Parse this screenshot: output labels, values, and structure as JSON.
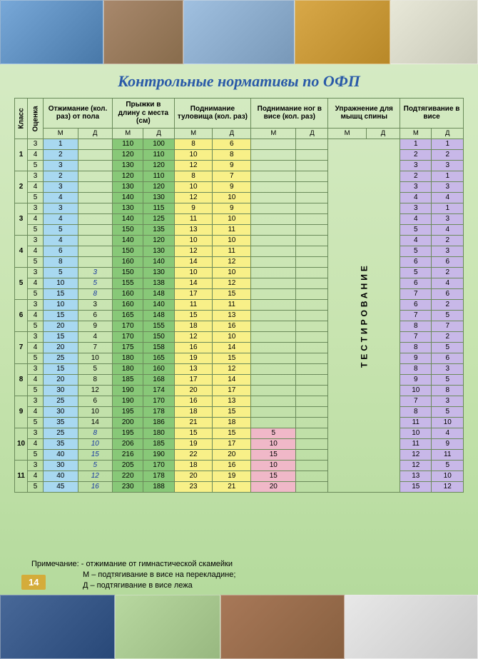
{
  "title": "Контрольные нормативы по ОФП",
  "page_number": "14",
  "headers": {
    "klass": "Класс",
    "grade": "Оценка",
    "ex1": "Отжимание (кол. раз) от пола",
    "ex2": "Прыжки в длину с места (см)",
    "ex3": "Поднимание туловища (кол. раз)",
    "ex4": "Поднимание ног в висе (кол. раз)",
    "ex5": "Упражнение для мышц спины",
    "ex6": "Подтягивание в висе",
    "m": "М",
    "d": "Д"
  },
  "test_label": "ТЕСТИРОВАНИЕ",
  "colors": {
    "blue": "#a8d8f0",
    "green": "#88c878",
    "yellow": "#f8f088",
    "purple": "#c8b8e8",
    "pink": "#f0b8c8",
    "border": "#6a8a5a",
    "title": "#2a5aa8"
  },
  "note_lines": [
    "Примечание: - отжимание от гимнастической скамейки",
    "М – подтягивание в висе на перекладине;",
    "Д – подтягивание в висе лежа"
  ],
  "rows": [
    {
      "k": "1",
      "g": "3",
      "e1m": "1",
      "e1d": "",
      "e2m": "110",
      "e2d": "100",
      "e3m": "8",
      "e3d": "6",
      "e4m": "",
      "e4d": "",
      "e6m": "1",
      "e6d": "1"
    },
    {
      "k": "",
      "g": "4",
      "e1m": "2",
      "e1d": "",
      "e2m": "120",
      "e2d": "110",
      "e3m": "10",
      "e3d": "8",
      "e4m": "",
      "e4d": "",
      "e6m": "2",
      "e6d": "2"
    },
    {
      "k": "",
      "g": "5",
      "e1m": "3",
      "e1d": "",
      "e2m": "130",
      "e2d": "120",
      "e3m": "12",
      "e3d": "9",
      "e4m": "",
      "e4d": "",
      "e6m": "3",
      "e6d": "3"
    },
    {
      "k": "2",
      "g": "3",
      "e1m": "2",
      "e1d": "",
      "e2m": "120",
      "e2d": "110",
      "e3m": "8",
      "e3d": "7",
      "e4m": "",
      "e4d": "",
      "e6m": "2",
      "e6d": "1"
    },
    {
      "k": "",
      "g": "4",
      "e1m": "3",
      "e1d": "",
      "e2m": "130",
      "e2d": "120",
      "e3m": "10",
      "e3d": "9",
      "e4m": "",
      "e4d": "",
      "e6m": "3",
      "e6d": "3"
    },
    {
      "k": "",
      "g": "5",
      "e1m": "4",
      "e1d": "",
      "e2m": "140",
      "e2d": "130",
      "e3m": "12",
      "e3d": "10",
      "e4m": "",
      "e4d": "",
      "e6m": "4",
      "e6d": "4"
    },
    {
      "k": "3",
      "g": "3",
      "e1m": "3",
      "e1d": "",
      "e2m": "130",
      "e2d": "115",
      "e3m": "9",
      "e3d": "9",
      "e4m": "",
      "e4d": "",
      "e6m": "3",
      "e6d": "1"
    },
    {
      "k": "",
      "g": "4",
      "e1m": "4",
      "e1d": "",
      "e2m": "140",
      "e2d": "125",
      "e3m": "11",
      "e3d": "10",
      "e4m": "",
      "e4d": "",
      "e6m": "4",
      "e6d": "3"
    },
    {
      "k": "",
      "g": "5",
      "e1m": "5",
      "e1d": "",
      "e2m": "150",
      "e2d": "135",
      "e3m": "13",
      "e3d": "11",
      "e4m": "",
      "e4d": "",
      "e6m": "5",
      "e6d": "4"
    },
    {
      "k": "4",
      "g": "3",
      "e1m": "4",
      "e1d": "",
      "e2m": "140",
      "e2d": "120",
      "e3m": "10",
      "e3d": "10",
      "e4m": "",
      "e4d": "",
      "e6m": "4",
      "e6d": "2"
    },
    {
      "k": "",
      "g": "4",
      "e1m": "6",
      "e1d": "",
      "e2m": "150",
      "e2d": "130",
      "e3m": "12",
      "e3d": "11",
      "e4m": "",
      "e4d": "",
      "e6m": "5",
      "e6d": "3"
    },
    {
      "k": "",
      "g": "5",
      "e1m": "8",
      "e1d": "",
      "e2m": "160",
      "e2d": "140",
      "e3m": "14",
      "e3d": "12",
      "e4m": "",
      "e4d": "",
      "e6m": "6",
      "e6d": "6"
    },
    {
      "k": "5",
      "g": "3",
      "e1m": "5",
      "e1d": "",
      "i": "3",
      "e2m": "150",
      "e2d": "130",
      "e3m": "10",
      "e3d": "10",
      "e4m": "",
      "e4d": "",
      "e6m": "5",
      "e6d": "2"
    },
    {
      "k": "",
      "g": "4",
      "e1m": "10",
      "e1d": "",
      "i": "5",
      "e2m": "155",
      "e2d": "138",
      "e3m": "14",
      "e3d": "12",
      "e4m": "",
      "e4d": "",
      "e6m": "6",
      "e6d": "4"
    },
    {
      "k": "",
      "g": "5",
      "e1m": "15",
      "e1d": "",
      "i": "8",
      "e2m": "160",
      "e2d": "148",
      "e3m": "17",
      "e3d": "15",
      "e4m": "",
      "e4d": "",
      "e6m": "7",
      "e6d": "6"
    },
    {
      "k": "6",
      "g": "3",
      "e1m": "10",
      "e1d": "3",
      "e2m": "160",
      "e2d": "140",
      "e3m": "11",
      "e3d": "11",
      "e4m": "",
      "e4d": "",
      "e6m": "6",
      "e6d": "2"
    },
    {
      "k": "",
      "g": "4",
      "e1m": "15",
      "e1d": "6",
      "e2m": "165",
      "e2d": "148",
      "e3m": "15",
      "e3d": "13",
      "e4m": "",
      "e4d": "",
      "e6m": "7",
      "e6d": "5"
    },
    {
      "k": "",
      "g": "5",
      "e1m": "20",
      "e1d": "9",
      "e2m": "170",
      "e2d": "155",
      "e3m": "18",
      "e3d": "16",
      "e4m": "",
      "e4d": "",
      "e6m": "8",
      "e6d": "7"
    },
    {
      "k": "7",
      "g": "3",
      "e1m": "15",
      "e1d": "4",
      "e2m": "170",
      "e2d": "150",
      "e3m": "12",
      "e3d": "10",
      "e4m": "",
      "e4d": "",
      "e6m": "7",
      "e6d": "2"
    },
    {
      "k": "",
      "g": "4",
      "e1m": "20",
      "e1d": "7",
      "e2m": "175",
      "e2d": "158",
      "e3m": "16",
      "e3d": "14",
      "e4m": "",
      "e4d": "",
      "e6m": "8",
      "e6d": "5"
    },
    {
      "k": "",
      "g": "5",
      "e1m": "25",
      "e1d": "10",
      "e2m": "180",
      "e2d": "165",
      "e3m": "19",
      "e3d": "15",
      "e4m": "",
      "e4d": "",
      "e6m": "9",
      "e6d": "6"
    },
    {
      "k": "8",
      "g": "3",
      "e1m": "15",
      "e1d": "5",
      "e2m": "180",
      "e2d": "160",
      "e3m": "13",
      "e3d": "12",
      "e4m": "",
      "e4d": "",
      "e6m": "8",
      "e6d": "3"
    },
    {
      "k": "",
      "g": "4",
      "e1m": "20",
      "e1d": "8",
      "e2m": "185",
      "e2d": "168",
      "e3m": "17",
      "e3d": "14",
      "e4m": "",
      "e4d": "",
      "e6m": "9",
      "e6d": "5"
    },
    {
      "k": "",
      "g": "5",
      "e1m": "30",
      "e1d": "12",
      "e2m": "190",
      "e2d": "174",
      "e3m": "20",
      "e3d": "17",
      "e4m": "",
      "e4d": "",
      "e6m": "10",
      "e6d": "8"
    },
    {
      "k": "9",
      "g": "3",
      "e1m": "25",
      "e1d": "6",
      "e2m": "190",
      "e2d": "170",
      "e3m": "16",
      "e3d": "13",
      "e4m": "",
      "e4d": "",
      "e6m": "7",
      "e6d": "3"
    },
    {
      "k": "",
      "g": "4",
      "e1m": "30",
      "e1d": "10",
      "e2m": "195",
      "e2d": "178",
      "e3m": "18",
      "e3d": "15",
      "e4m": "",
      "e4d": "",
      "e6m": "8",
      "e6d": "5"
    },
    {
      "k": "",
      "g": "5",
      "e1m": "35",
      "e1d": "14",
      "e2m": "200",
      "e2d": "186",
      "e3m": "21",
      "e3d": "18",
      "e4m": "",
      "e4d": "",
      "e6m": "11",
      "e6d": "10"
    },
    {
      "k": "10",
      "g": "3",
      "e1m": "25",
      "e1d": "",
      "i": "8",
      "e2m": "195",
      "e2d": "180",
      "e3m": "15",
      "e3d": "15",
      "e4m": "5",
      "e4d": "",
      "p": 1,
      "e6m": "10",
      "e6d": "4"
    },
    {
      "k": "",
      "g": "4",
      "e1m": "35",
      "e1d": "",
      "i": "10",
      "e2m": "206",
      "e2d": "185",
      "e3m": "19",
      "e3d": "17",
      "e4m": "10",
      "e4d": "",
      "p": 1,
      "e6m": "11",
      "e6d": "9"
    },
    {
      "k": "",
      "g": "5",
      "e1m": "40",
      "e1d": "",
      "i": "15",
      "e2m": "216",
      "e2d": "190",
      "e3m": "22",
      "e3d": "20",
      "e4m": "15",
      "e4d": "",
      "p": 1,
      "e6m": "12",
      "e6d": "11"
    },
    {
      "k": "11",
      "g": "3",
      "e1m": "30",
      "e1d": "",
      "i": "5",
      "e2m": "205",
      "e2d": "170",
      "e3m": "18",
      "e3d": "16",
      "e4m": "10",
      "e4d": "",
      "p": 1,
      "e6m": "12",
      "e6d": "5"
    },
    {
      "k": "",
      "g": "4",
      "e1m": "40",
      "e1d": "",
      "i": "12",
      "e2m": "220",
      "e2d": "178",
      "e3m": "20",
      "e3d": "19",
      "e4m": "15",
      "e4d": "",
      "p": 1,
      "e6m": "13",
      "e6d": "10"
    },
    {
      "k": "",
      "g": "5",
      "e1m": "45",
      "e1d": "",
      "i": "16",
      "e2m": "230",
      "e2d": "188",
      "e3m": "23",
      "e3d": "21",
      "e4m": "20",
      "e4d": "",
      "p": 1,
      "e6m": "15",
      "e6d": "12"
    }
  ]
}
